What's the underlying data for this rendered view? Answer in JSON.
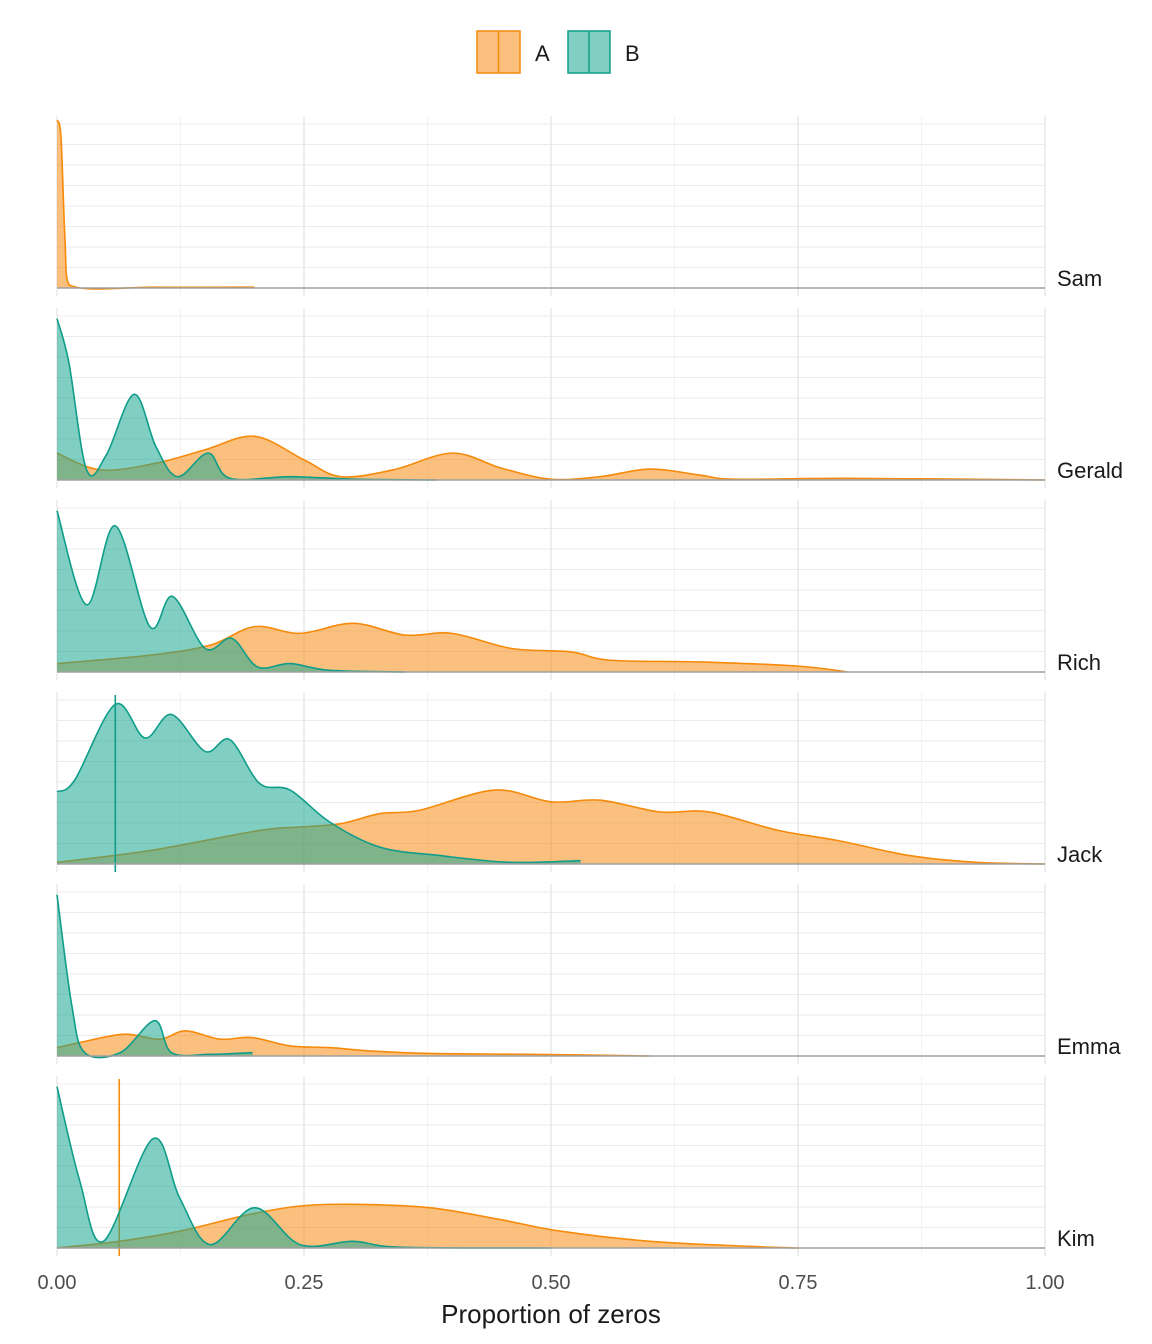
{
  "chart_data": {
    "type": "ridgeline-density",
    "xlabel": "Proportion of zeros",
    "xlim": [
      0,
      1
    ],
    "x_ticks": [
      "0.00",
      "0.25",
      "0.50",
      "0.75",
      "1.00"
    ],
    "x_tick_values": [
      0,
      0.25,
      0.5,
      0.75,
      1
    ],
    "grid": true,
    "legend": {
      "placement": "top",
      "entries": [
        "A",
        "B"
      ]
    },
    "colors": {
      "A_stroke": "#f58a0b",
      "A_fill": "rgba(247,140,20,0.55)",
      "B_stroke": "#0f9d8a",
      "B_fill": "rgba(26,168,146,0.55)"
    },
    "y_units": "relative density (fraction of ridge height)",
    "ridges": [
      {
        "name": "Sam",
        "A": [
          [
            0,
            1
          ],
          [
            0.004,
            0.9
          ],
          [
            0.008,
            0.3
          ],
          [
            0.012,
            0.02
          ],
          [
            0.1,
            0.005
          ],
          [
            0.2,
            0.005
          ]
        ],
        "B": []
      },
      {
        "name": "Gerald",
        "A": [
          [
            0,
            0.16
          ],
          [
            0.044,
            0.06
          ],
          [
            0.1,
            0.1
          ],
          [
            0.15,
            0.18
          ],
          [
            0.2,
            0.26
          ],
          [
            0.25,
            0.12
          ],
          [
            0.287,
            0.02
          ],
          [
            0.34,
            0.06
          ],
          [
            0.4,
            0.16
          ],
          [
            0.45,
            0.07
          ],
          [
            0.5,
            0.005
          ],
          [
            0.55,
            0.02
          ],
          [
            0.6,
            0.065
          ],
          [
            0.65,
            0.03
          ],
          [
            0.686,
            0.005
          ],
          [
            0.8,
            0.01
          ],
          [
            1.0,
            0
          ]
        ],
        "B": [
          [
            0,
            0.96
          ],
          [
            0.012,
            0.7
          ],
          [
            0.03,
            0.06
          ],
          [
            0.05,
            0.15
          ],
          [
            0.078,
            0.51
          ],
          [
            0.1,
            0.2
          ],
          [
            0.122,
            0.02
          ],
          [
            0.153,
            0.16
          ],
          [
            0.175,
            0.01
          ],
          [
            0.236,
            0.02
          ],
          [
            0.3,
            0.005
          ],
          [
            0.384,
            0
          ]
        ],
        "B_line": null
      },
      {
        "name": "Rich",
        "A": [
          [
            0,
            0.05
          ],
          [
            0.094,
            0.1
          ],
          [
            0.155,
            0.16
          ],
          [
            0.2,
            0.27
          ],
          [
            0.246,
            0.23
          ],
          [
            0.3,
            0.29
          ],
          [
            0.352,
            0.22
          ],
          [
            0.4,
            0.23
          ],
          [
            0.46,
            0.14
          ],
          [
            0.52,
            0.12
          ],
          [
            0.56,
            0.07
          ],
          [
            0.65,
            0.06
          ],
          [
            0.75,
            0.035
          ],
          [
            0.8,
            0
          ]
        ],
        "B": [
          [
            0,
            0.96
          ],
          [
            0.03,
            0.4
          ],
          [
            0.059,
            0.87
          ],
          [
            0.094,
            0.27
          ],
          [
            0.117,
            0.45
          ],
          [
            0.15,
            0.14
          ],
          [
            0.177,
            0.2
          ],
          [
            0.203,
            0.03
          ],
          [
            0.236,
            0.05
          ],
          [
            0.276,
            0.01
          ],
          [
            0.353,
            0
          ]
        ]
      },
      {
        "name": "Jack",
        "A": [
          [
            0,
            0.01
          ],
          [
            0.094,
            0.08
          ],
          [
            0.205,
            0.2
          ],
          [
            0.246,
            0.22
          ],
          [
            0.287,
            0.24
          ],
          [
            0.327,
            0.3
          ],
          [
            0.367,
            0.32
          ],
          [
            0.443,
            0.44
          ],
          [
            0.5,
            0.37
          ],
          [
            0.55,
            0.38
          ],
          [
            0.61,
            0.31
          ],
          [
            0.66,
            0.31
          ],
          [
            0.73,
            0.2
          ],
          [
            0.79,
            0.14
          ],
          [
            0.863,
            0.05
          ],
          [
            0.93,
            0.01
          ],
          [
            1.0,
            0
          ]
        ],
        "B": [
          [
            0,
            0.43
          ],
          [
            0.018,
            0.5
          ],
          [
            0.059,
            0.95
          ],
          [
            0.089,
            0.75
          ],
          [
            0.116,
            0.89
          ],
          [
            0.15,
            0.67
          ],
          [
            0.175,
            0.74
          ],
          [
            0.205,
            0.48
          ],
          [
            0.236,
            0.44
          ],
          [
            0.276,
            0.25
          ],
          [
            0.327,
            0.1
          ],
          [
            0.388,
            0.05
          ],
          [
            0.458,
            0.01
          ],
          [
            0.53,
            0.02
          ]
        ],
        "B_line": 0.059
      },
      {
        "name": "Emma",
        "A": [
          [
            0,
            0.05
          ],
          [
            0.023,
            0.08
          ],
          [
            0.068,
            0.13
          ],
          [
            0.104,
            0.1
          ],
          [
            0.13,
            0.15
          ],
          [
            0.165,
            0.1
          ],
          [
            0.197,
            0.11
          ],
          [
            0.236,
            0.06
          ],
          [
            0.276,
            0.05
          ],
          [
            0.317,
            0.03
          ],
          [
            0.377,
            0.015
          ],
          [
            0.478,
            0.01
          ],
          [
            0.6,
            0
          ]
        ],
        "B": [
          [
            0,
            0.96
          ],
          [
            0.015,
            0.3
          ],
          [
            0.028,
            0.02
          ],
          [
            0.064,
            0.02
          ],
          [
            0.099,
            0.21
          ],
          [
            0.116,
            0.02
          ],
          [
            0.155,
            0.01
          ],
          [
            0.198,
            0.02
          ]
        ]
      },
      {
        "name": "Kim",
        "A": [
          [
            0,
            0
          ],
          [
            0.063,
            0.04
          ],
          [
            0.124,
            0.1
          ],
          [
            0.195,
            0.2
          ],
          [
            0.246,
            0.25
          ],
          [
            0.3,
            0.26
          ],
          [
            0.377,
            0.24
          ],
          [
            0.448,
            0.17
          ],
          [
            0.51,
            0.1
          ],
          [
            0.6,
            0.04
          ],
          [
            0.7,
            0.01
          ],
          [
            0.75,
            0
          ]
        ],
        "B": [
          [
            0,
            0.96
          ],
          [
            0.023,
            0.4
          ],
          [
            0.047,
            0.04
          ],
          [
            0.097,
            0.65
          ],
          [
            0.124,
            0.3
          ],
          [
            0.155,
            0.02
          ],
          [
            0.2,
            0.24
          ],
          [
            0.246,
            0.02
          ],
          [
            0.3,
            0.04
          ],
          [
            0.347,
            0.005
          ],
          [
            0.5,
            0
          ]
        ],
        "A_line": 0.063
      }
    ]
  }
}
